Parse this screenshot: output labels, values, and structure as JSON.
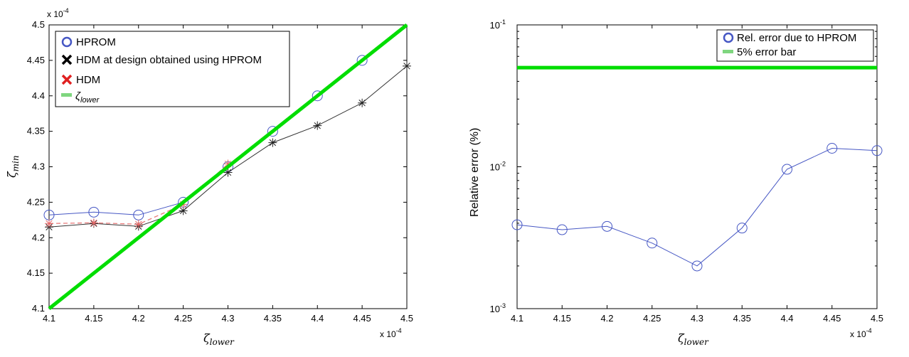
{
  "chart_data": [
    {
      "type": "line",
      "x_multiplier": "x 10",
      "x_multiplier_exp": "-4",
      "y_multiplier": "x 10",
      "y_multiplier_exp": "-4",
      "xlabel": {
        "base": "ζ",
        "sub": "lower"
      },
      "ylabel": {
        "base": "ζ",
        "sub": "min"
      },
      "xlim": [
        4.1,
        4.5
      ],
      "ylim": [
        4.1,
        4.5
      ],
      "x_ticks": [
        "4.1",
        "4.15",
        "4.2",
        "4.25",
        "4.3",
        "4.35",
        "4.4",
        "4.45",
        "4.5"
      ],
      "y_ticks": [
        "4.1",
        "4.15",
        "4.2",
        "4.25",
        "4.3",
        "4.35",
        "4.4",
        "4.45",
        "4.5"
      ],
      "grid": false,
      "legend_position": "top-left",
      "series": [
        {
          "name": "HPROM",
          "color": "#4657c4",
          "marker": "circle",
          "x": [
            4.1,
            4.15,
            4.2,
            4.25,
            4.3,
            4.35,
            4.4,
            4.45
          ],
          "y": [
            4.232,
            4.236,
            4.232,
            4.25,
            4.3,
            4.35,
            4.4,
            4.45
          ]
        },
        {
          "name": "HDM at design obtained using HPROM",
          "color": "#000000",
          "marker": "star",
          "x": [
            4.1,
            4.15,
            4.2,
            4.25,
            4.3,
            4.35,
            4.4,
            4.45,
            4.5
          ],
          "y": [
            4.215,
            4.22,
            4.216,
            4.238,
            4.292,
            4.334,
            4.358,
            4.39,
            4.442
          ]
        },
        {
          "name": "HDM",
          "color": "#e02020",
          "marker": "star",
          "x": [
            4.1,
            4.15,
            4.2,
            4.25,
            4.3
          ],
          "y": [
            4.22,
            4.221,
            4.219,
            4.247,
            4.304
          ]
        },
        {
          "name": "ζ",
          "name_sub": "lower",
          "color": "#00dd00",
          "marker": "none",
          "x": [
            4.1,
            4.5
          ],
          "y": [
            4.1,
            4.5
          ]
        }
      ]
    },
    {
      "type": "line",
      "x_multiplier": "x 10",
      "x_multiplier_exp": "-4",
      "xlabel": {
        "base": "ζ",
        "sub": "lower"
      },
      "ylabel": "Relative error (%)",
      "xlim": [
        4.1,
        4.5
      ],
      "ylim": [
        0.001,
        0.1
      ],
      "yscale": "log",
      "x_ticks": [
        "4.1",
        "4.15",
        "4.2",
        "4.25",
        "4.3",
        "4.35",
        "4.4",
        "4.45",
        "4.5"
      ],
      "y_ticks": [
        {
          "base": "10",
          "exp": "-3"
        },
        {
          "base": "10",
          "exp": "-2"
        },
        {
          "base": "10",
          "exp": "-1"
        }
      ],
      "grid": false,
      "legend_position": "top-right",
      "series": [
        {
          "name": "Rel. error due to HPROM",
          "color": "#4657c4",
          "marker": "circle",
          "x": [
            4.1,
            4.15,
            4.2,
            4.25,
            4.3,
            4.35,
            4.4,
            4.45,
            4.5
          ],
          "y": [
            0.0039,
            0.0036,
            0.0038,
            0.0029,
            0.002,
            0.0037,
            0.0096,
            0.0135,
            0.013
          ]
        },
        {
          "name": "5% error bar",
          "color": "#00dd00",
          "marker": "none",
          "x": [
            4.1,
            4.5
          ],
          "y": [
            0.05,
            0.05
          ]
        }
      ]
    }
  ]
}
